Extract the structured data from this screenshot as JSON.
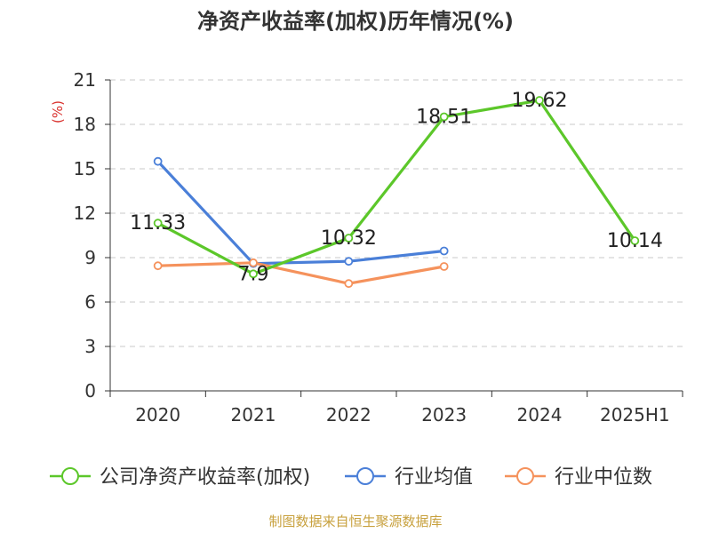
{
  "chart_data": {
    "type": "line",
    "title": "净资产收益率(加权)历年情况(%)",
    "ylabel": "(%)",
    "xlabel": "",
    "categories": [
      "2020",
      "2021",
      "2022",
      "2023",
      "2024",
      "2025H1"
    ],
    "ylim": [
      0,
      21
    ],
    "yticks": [
      0,
      3,
      6,
      9,
      12,
      15,
      18,
      21
    ],
    "grid": true,
    "legend_position": "bottom",
    "series": [
      {
        "name": "公司净资产收益率(加权)",
        "color": "#5cc72a",
        "values": [
          11.33,
          7.9,
          10.32,
          18.51,
          19.62,
          10.14
        ],
        "labels": [
          "11.33",
          "7.9",
          "10.32",
          "18.51",
          "19.62",
          "10.14"
        ]
      },
      {
        "name": "行业均值",
        "color": "#4a7fd8",
        "values": [
          15.5,
          8.6,
          8.75,
          9.45,
          null,
          null
        ]
      },
      {
        "name": "行业中位数",
        "color": "#f5925c",
        "values": [
          8.45,
          8.65,
          7.25,
          8.4,
          null,
          null
        ]
      }
    ]
  },
  "source_note": "制图数据来自恒生聚源数据库"
}
